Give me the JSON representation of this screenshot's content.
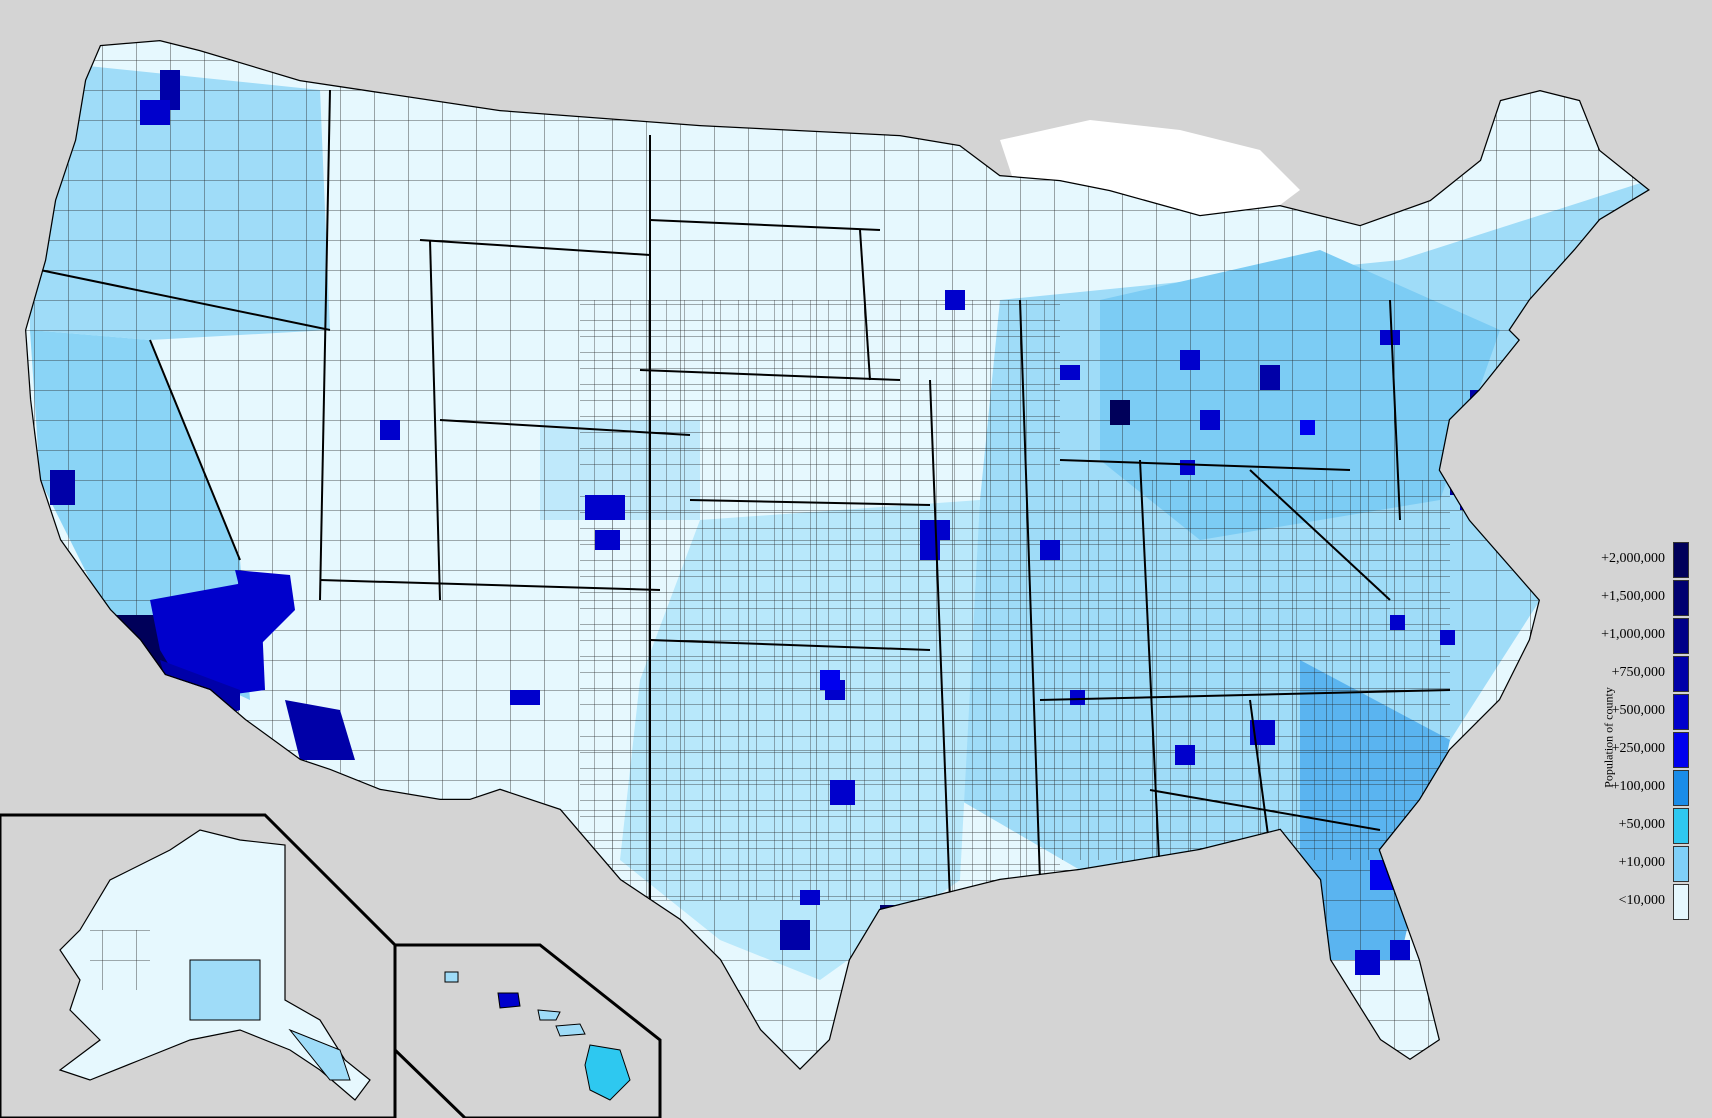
{
  "legend": {
    "title": "Population of county",
    "items": [
      {
        "label": "+2,000,000",
        "color": "#00005a"
      },
      {
        "label": "+1,500,000",
        "color": "#000070"
      },
      {
        "label": "+1,000,000",
        "color": "#000088"
      },
      {
        "label": "+750,000",
        "color": "#0000a8"
      },
      {
        "label": "+500,000",
        "color": "#0000cc"
      },
      {
        "label": "+250,000",
        "color": "#0000ee"
      },
      {
        "label": "+100,000",
        "color": "#1a8ce8"
      },
      {
        "label": "+50,000",
        "color": "#2ec8f0"
      },
      {
        "label": "+10,000",
        "color": "#80d0f8"
      },
      {
        "label": "<10,000",
        "color": "#e6f8fe"
      }
    ]
  },
  "map": {
    "land_color": "#e6f8fe",
    "foreign_color": "#d4d4d4",
    "water_color": "#ffffff",
    "insets": [
      "alaska",
      "hawaii"
    ]
  }
}
